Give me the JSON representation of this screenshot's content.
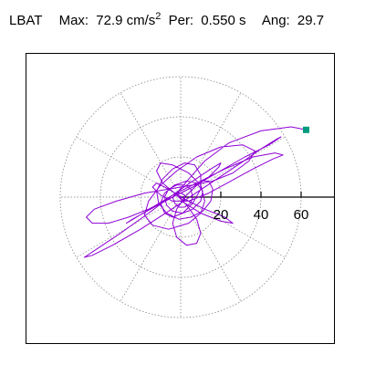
{
  "header": {
    "station": "LBAT",
    "max_label": "Max:",
    "max_value": "72.9 cm/s",
    "max_exp": "2",
    "per_label": "Per:",
    "per_value": "0.550 s",
    "ang_label": "Ang:",
    "ang_value": "29.7"
  },
  "chart_data": {
    "type": "polar-orbit",
    "title": "",
    "radial_ticks": [
      20,
      40,
      60
    ],
    "radial_tick_labels": [
      "20",
      "40",
      "60"
    ],
    "radial_range": [
      0,
      75
    ],
    "grid_rings": [
      20,
      40,
      60
    ],
    "grid_spoke_step_deg": 30,
    "grid": "dotted",
    "max_value": 72.9,
    "max_units": "cm/s^2",
    "period_s": 0.55,
    "angle_deg": 29.7,
    "orbit_color": "#8e00d6",
    "marker_color": "#009b7d",
    "end_marker_xy": [
      62.5,
      33.5
    ],
    "orbit_points": [
      [
        62.5,
        33.5
      ],
      [
        55,
        35
      ],
      [
        40,
        33
      ],
      [
        24,
        27
      ],
      [
        12,
        18
      ],
      [
        4,
        9
      ],
      [
        -2,
        2
      ],
      [
        2,
        -3
      ],
      [
        10,
        -8
      ],
      [
        20,
        -12
      ],
      [
        26,
        -13
      ],
      [
        22,
        -10
      ],
      [
        12,
        -6
      ],
      [
        2,
        -1
      ],
      [
        -6,
        4
      ],
      [
        -12,
        7
      ],
      [
        -14,
        5
      ],
      [
        -10,
        1
      ],
      [
        -4,
        -2
      ],
      [
        4,
        -2
      ],
      [
        14,
        2
      ],
      [
        25,
        8
      ],
      [
        36,
        14
      ],
      [
        46,
        19
      ],
      [
        51,
        21
      ],
      [
        47,
        22
      ],
      [
        36,
        20
      ],
      [
        22,
        14
      ],
      [
        8,
        7
      ],
      [
        -4,
        1
      ],
      [
        -14,
        -5
      ],
      [
        -22,
        -10
      ],
      [
        -27,
        -13
      ],
      [
        -24,
        -11
      ],
      [
        -15,
        -6
      ],
      [
        -4,
        0
      ],
      [
        6,
        5
      ],
      [
        14,
        10
      ],
      [
        19,
        15
      ],
      [
        20,
        17
      ],
      [
        15,
        14
      ],
      [
        6,
        8
      ],
      [
        -4,
        1
      ],
      [
        -16,
        -8
      ],
      [
        -30,
        -18
      ],
      [
        -42,
        -26
      ],
      [
        -48,
        -30
      ],
      [
        -44,
        -29
      ],
      [
        -34,
        -24
      ],
      [
        -20,
        -16
      ],
      [
        -6,
        -7
      ],
      [
        6,
        1
      ],
      [
        18,
        9
      ],
      [
        30,
        17
      ],
      [
        40,
        24
      ],
      [
        48,
        29
      ],
      [
        50,
        30
      ],
      [
        44,
        26
      ],
      [
        32,
        20
      ],
      [
        18,
        12
      ],
      [
        6,
        5
      ],
      [
        -6,
        -1
      ],
      [
        -16,
        -6
      ],
      [
        -26,
        -10
      ],
      [
        -36,
        -13
      ],
      [
        -44,
        -13
      ],
      [
        -47,
        -10
      ],
      [
        -43,
        -6
      ],
      [
        -32,
        -2
      ],
      [
        -18,
        2
      ],
      [
        -6,
        4
      ],
      [
        6,
        6
      ],
      [
        16,
        8
      ],
      [
        26,
        12
      ],
      [
        34,
        18
      ],
      [
        37,
        23
      ],
      [
        31,
        26
      ],
      [
        20,
        25
      ],
      [
        8,
        20
      ],
      [
        -2,
        13
      ],
      [
        -10,
        6
      ],
      [
        -16,
        -2
      ],
      [
        -18,
        -9
      ],
      [
        -14,
        -14
      ],
      [
        -6,
        -16
      ],
      [
        4,
        -13
      ],
      [
        10,
        -8
      ],
      [
        12,
        -2
      ],
      [
        10,
        6
      ],
      [
        4,
        12
      ],
      [
        -4,
        16
      ],
      [
        -10,
        17
      ],
      [
        -12,
        13
      ],
      [
        -9,
        7
      ],
      [
        -3,
        2
      ],
      [
        3,
        -4
      ],
      [
        8,
        -11
      ],
      [
        10,
        -18
      ],
      [
        8,
        -23
      ],
      [
        3,
        -24
      ],
      [
        -2,
        -20
      ],
      [
        -4,
        -13
      ],
      [
        -2,
        -6
      ],
      [
        2,
        0
      ],
      [
        7,
        5
      ],
      [
        11,
        8
      ],
      [
        14,
        8
      ],
      [
        16,
        4
      ],
      [
        15,
        -2
      ],
      [
        11,
        -7
      ],
      [
        5,
        -10
      ],
      [
        -1,
        -11
      ],
      [
        -7,
        -8
      ],
      [
        -11,
        -3
      ],
      [
        -12,
        3
      ],
      [
        -9,
        9
      ],
      [
        -4,
        14
      ],
      [
        2,
        17
      ],
      [
        7,
        16
      ],
      [
        10,
        11
      ],
      [
        10,
        4
      ],
      [
        6,
        -3
      ],
      [
        1,
        -8
      ],
      [
        -4,
        -10
      ],
      [
        -8,
        -8
      ],
      [
        -10,
        -3
      ],
      [
        -8,
        2
      ],
      [
        -3,
        6
      ],
      [
        3,
        8
      ],
      [
        8,
        7
      ],
      [
        11,
        3
      ],
      [
        10,
        -2
      ],
      [
        6,
        -6
      ],
      [
        1,
        -8
      ],
      [
        -4,
        -7
      ],
      [
        -7,
        -4
      ],
      [
        -8,
        0
      ],
      [
        -6,
        4
      ],
      [
        -2,
        6
      ],
      [
        2,
        6
      ],
      [
        5,
        4
      ],
      [
        6,
        0
      ],
      [
        5,
        -3
      ],
      [
        2,
        -5
      ],
      [
        -1,
        -5
      ],
      [
        -3,
        -3
      ],
      [
        -4,
        0
      ],
      [
        -2,
        2
      ],
      [
        0,
        2
      ],
      [
        2,
        1
      ],
      [
        2,
        -1
      ],
      [
        1,
        -2
      ],
      [
        0,
        -1
      ]
    ]
  }
}
